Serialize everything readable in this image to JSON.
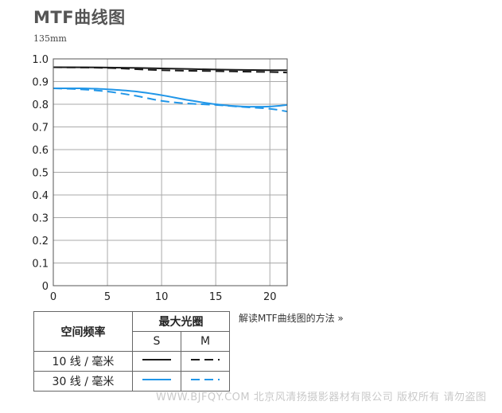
{
  "page": {
    "title": "MTF曲线图",
    "subtitle": "135mm",
    "explain_link": "解读MTF曲线图的方法 »",
    "watermark": "WWW.BJFQY.COM 北京风清扬摄影器材有限公司 版权所有 请勿盗图"
  },
  "colors": {
    "black": "#1a1a1a",
    "blue": "#2196e8",
    "grid": "#aaaaaa"
  },
  "chart_data": {
    "type": "line",
    "xlim": [
      0,
      21.6
    ],
    "ylim": [
      0,
      1.0
    ],
    "xticks": [
      "0",
      "5",
      "10",
      "15",
      "20"
    ],
    "xtick_values": [
      0,
      5,
      10,
      15,
      20
    ],
    "yticks": [
      "0",
      "0.1",
      "0.2",
      "0.3",
      "0.4",
      "0.5",
      "0.6",
      "0.7",
      "0.8",
      "0.9",
      "1.0"
    ],
    "ytick_values": [
      0,
      0.1,
      0.2,
      0.3,
      0.4,
      0.5,
      0.6,
      0.7,
      0.8,
      0.9,
      1.0
    ],
    "grid": true,
    "series": [
      {
        "name": "10 线 / 毫米 S",
        "color": "black",
        "style": "solid",
        "x": [
          0,
          5,
          10,
          15,
          20,
          21.6
        ],
        "y": [
          0.963,
          0.962,
          0.958,
          0.953,
          0.95,
          0.95
        ]
      },
      {
        "name": "10 线 / 毫米 M",
        "color": "black",
        "style": "dashed",
        "x": [
          0,
          5,
          10,
          15,
          20,
          21.6
        ],
        "y": [
          0.963,
          0.96,
          0.95,
          0.946,
          0.942,
          0.94
        ]
      },
      {
        "name": "30 线 / 毫米 S",
        "color": "blue",
        "style": "solid",
        "x": [
          0,
          2.5,
          5,
          7.5,
          10,
          12.5,
          15,
          17.5,
          20,
          21.6
        ],
        "y": [
          0.87,
          0.87,
          0.866,
          0.857,
          0.84,
          0.818,
          0.8,
          0.79,
          0.79,
          0.797
        ]
      },
      {
        "name": "30 线 / 毫米 M",
        "color": "blue",
        "style": "dashed",
        "x": [
          0,
          2.5,
          5,
          7.5,
          10,
          12.5,
          15,
          17.5,
          20,
          21.6
        ],
        "y": [
          0.87,
          0.866,
          0.856,
          0.838,
          0.815,
          0.803,
          0.797,
          0.788,
          0.78,
          0.768
        ]
      }
    ]
  },
  "legend": {
    "head_label": "空间频率",
    "group_label": "最大光圈",
    "col_s": "S",
    "col_m": "M",
    "rows": [
      {
        "label": "10 线 / 毫米",
        "color": "black"
      },
      {
        "label": "30 线 / 毫米",
        "color": "blue"
      }
    ]
  }
}
